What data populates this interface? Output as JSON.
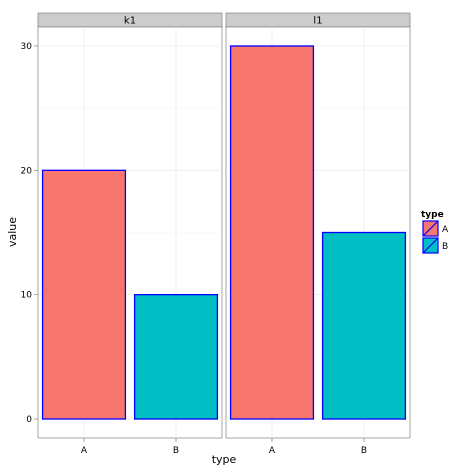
{
  "chart_data": {
    "type": "bar",
    "facets": [
      "k1",
      "l1"
    ],
    "categories": [
      "A",
      "B"
    ],
    "panels": [
      {
        "facet": "k1",
        "values": [
          20,
          10
        ]
      },
      {
        "facet": "l1",
        "values": [
          30,
          15
        ]
      }
    ],
    "xlabel": "type",
    "ylabel": "value",
    "ylim": [
      0,
      30
    ],
    "y_ticks": [
      0,
      10,
      20,
      30
    ],
    "legend": {
      "title": "type",
      "position": "right",
      "entries": [
        {
          "label": "A",
          "color": "#f8766d"
        },
        {
          "label": "B",
          "color": "#00bfc4"
        }
      ]
    },
    "bar_outline_color": "#0000ff",
    "grid": true
  }
}
